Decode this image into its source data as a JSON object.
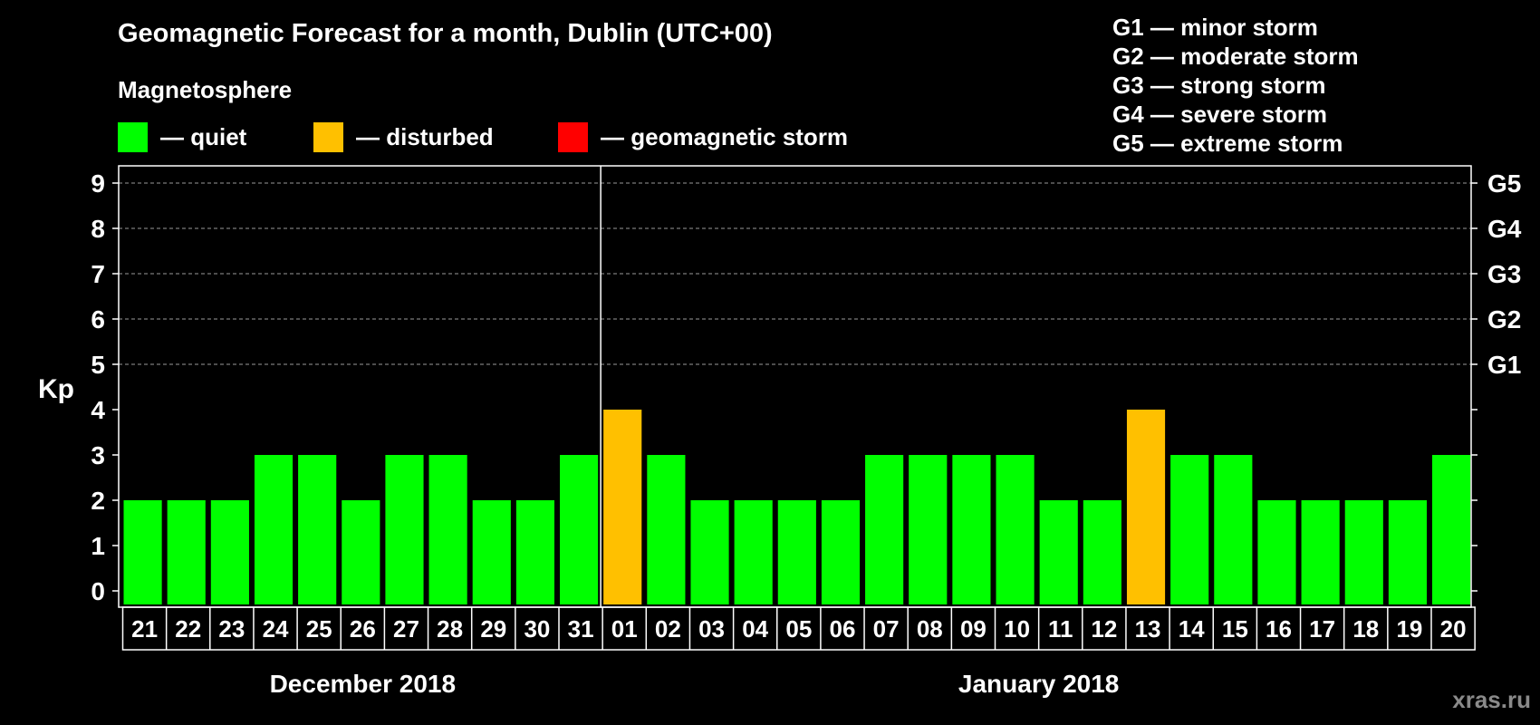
{
  "title": "Geomagnetic Forecast for a month, Dublin (UTC+00)",
  "magnetosphere": {
    "title": "Magnetosphere",
    "items": [
      {
        "label": "— quiet",
        "color": "#00ff00"
      },
      {
        "label": "— disturbed",
        "color": "#ffc000"
      },
      {
        "label": "— geomagnetic storm",
        "color": "#ff0000"
      }
    ]
  },
  "storm_levels": [
    "G1 — minor storm",
    "G2 — moderate storm",
    "G3 — strong storm",
    "G4 — severe storm",
    "G5 — extreme storm"
  ],
  "watermark": "xras.ru",
  "chart_data": {
    "type": "bar",
    "ylabel": "Kp",
    "ylim": [
      0,
      9
    ],
    "yticks": [
      0,
      1,
      2,
      3,
      4,
      5,
      6,
      7,
      8,
      9
    ],
    "right_axis_labels": [
      {
        "kp": 5,
        "label": "G1"
      },
      {
        "kp": 6,
        "label": "G2"
      },
      {
        "kp": 7,
        "label": "G3"
      },
      {
        "kp": 8,
        "label": "G4"
      },
      {
        "kp": 9,
        "label": "G5"
      }
    ],
    "grid": "dashed horizontal at Kp 5-9",
    "categories": [
      "21",
      "22",
      "23",
      "24",
      "25",
      "26",
      "27",
      "28",
      "29",
      "30",
      "31",
      "01",
      "02",
      "03",
      "04",
      "05",
      "06",
      "07",
      "08",
      "09",
      "10",
      "11",
      "12",
      "13",
      "14",
      "15",
      "16",
      "17",
      "18",
      "19",
      "20"
    ],
    "values": [
      2,
      2,
      2,
      3,
      3,
      2,
      3,
      3,
      2,
      2,
      3,
      4,
      3,
      2,
      2,
      2,
      2,
      3,
      3,
      3,
      3,
      2,
      2,
      4,
      3,
      3,
      2,
      2,
      2,
      2,
      3
    ],
    "status": [
      "quiet",
      "quiet",
      "quiet",
      "quiet",
      "quiet",
      "quiet",
      "quiet",
      "quiet",
      "quiet",
      "quiet",
      "quiet",
      "disturbed",
      "quiet",
      "quiet",
      "quiet",
      "quiet",
      "quiet",
      "quiet",
      "quiet",
      "quiet",
      "quiet",
      "quiet",
      "quiet",
      "disturbed",
      "quiet",
      "quiet",
      "quiet",
      "quiet",
      "quiet",
      "quiet",
      "quiet"
    ],
    "status_colors": {
      "quiet": "#00ff00",
      "disturbed": "#ffc000",
      "storm": "#ff0000"
    },
    "month_groups": [
      {
        "label": "December 2018",
        "count": 11
      },
      {
        "label": "January 2018",
        "count": 20
      }
    ]
  }
}
